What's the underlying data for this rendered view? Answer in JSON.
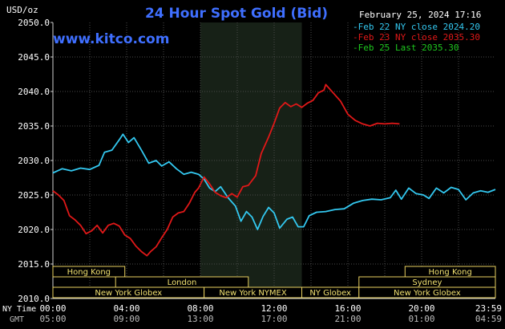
{
  "chart_data": {
    "type": "line",
    "title": "24 Hour Spot Gold (Bid)",
    "watermark": "www.kitco.com",
    "y_unit": "USD/oz",
    "timestamp": "February 25, 2024 17:16",
    "ylim": [
      2010,
      2050
    ],
    "y_ticks": [
      "2050.0",
      "2045.0",
      "2040.0",
      "2035.0",
      "2030.0",
      "2025.0",
      "2020.0",
      "2015.0",
      "2010.0"
    ],
    "xlim_hours": [
      0,
      24
    ],
    "x_row_label_ny": "NY Time",
    "x_row_label_gmt": "GMT",
    "x_ticks_ny": [
      "00:00",
      "04:00",
      "08:00",
      "12:00",
      "16:00",
      "20:00",
      "23:59"
    ],
    "x_ticks_gmt": [
      "05:00",
      "09:00",
      "13:00",
      "17:00",
      "21:00",
      "01:00",
      "04:59"
    ],
    "legend": [
      {
        "text": "Feb 22 NY close 2024.20",
        "color": "#33c8f0"
      },
      {
        "text": "Feb 23 NY close 2035.30",
        "color": "#e01818"
      },
      {
        "text": "Feb 25 Last 2035.30",
        "color": "#1ec81e"
      }
    ],
    "highlight_band_hours": [
      8,
      13.5
    ],
    "sessions": [
      {
        "label": "Hong Kong",
        "start": 0,
        "end": 3.9
      },
      {
        "label": "Hong Kong",
        "start": 19.1,
        "end": 24
      },
      {
        "label": "London",
        "start": 3.4,
        "end": 10.6
      },
      {
        "label": "Sydney",
        "start": 16.6,
        "end": 24
      },
      {
        "label": "New York Globex",
        "start": 0,
        "end": 8.2
      },
      {
        "label": "New York NYMEX",
        "start": 8.2,
        "end": 13.5
      },
      {
        "label": "NY Globex",
        "start": 13.5,
        "end": 16.6
      },
      {
        "label": "New York Globex",
        "start": 16.6,
        "end": 24
      }
    ],
    "series": [
      {
        "name": "Feb 22 NY close 2024.20",
        "color": "#33c8f0",
        "points": [
          [
            0,
            2028.2
          ],
          [
            0.5,
            2028.8
          ],
          [
            1,
            2028.5
          ],
          [
            1.5,
            2028.9
          ],
          [
            2,
            2028.7
          ],
          [
            2.5,
            2029.3
          ],
          [
            2.8,
            2031.2
          ],
          [
            3.2,
            2031.5
          ],
          [
            3.6,
            2033.0
          ],
          [
            3.8,
            2033.8
          ],
          [
            4.1,
            2032.6
          ],
          [
            4.4,
            2033.3
          ],
          [
            4.8,
            2031.5
          ],
          [
            5.2,
            2029.6
          ],
          [
            5.6,
            2030.0
          ],
          [
            5.9,
            2029.2
          ],
          [
            6.3,
            2029.8
          ],
          [
            6.7,
            2028.8
          ],
          [
            7.1,
            2028.0
          ],
          [
            7.5,
            2028.3
          ],
          [
            7.9,
            2028.0
          ],
          [
            8.2,
            2027.3
          ],
          [
            8.5,
            2026.0
          ],
          [
            8.8,
            2025.5
          ],
          [
            9.1,
            2026.2
          ],
          [
            9.5,
            2024.6
          ],
          [
            9.9,
            2023.4
          ],
          [
            10.2,
            2021.2
          ],
          [
            10.5,
            2022.6
          ],
          [
            10.8,
            2021.8
          ],
          [
            11.1,
            2020.0
          ],
          [
            11.4,
            2021.9
          ],
          [
            11.7,
            2023.2
          ],
          [
            12.0,
            2022.4
          ],
          [
            12.3,
            2020.2
          ],
          [
            12.7,
            2021.5
          ],
          [
            13.0,
            2021.8
          ],
          [
            13.3,
            2020.4
          ],
          [
            13.6,
            2020.4
          ],
          [
            13.9,
            2022.0
          ],
          [
            14.3,
            2022.5
          ],
          [
            14.8,
            2022.6
          ],
          [
            15.3,
            2022.9
          ],
          [
            15.8,
            2023.0
          ],
          [
            16.3,
            2023.8
          ],
          [
            16.8,
            2024.2
          ],
          [
            17.3,
            2024.4
          ],
          [
            17.8,
            2024.3
          ],
          [
            18.3,
            2024.6
          ],
          [
            18.6,
            2025.7
          ],
          [
            18.9,
            2024.4
          ],
          [
            19.3,
            2026.0
          ],
          [
            19.7,
            2025.2
          ],
          [
            20.1,
            2025.0
          ],
          [
            20.4,
            2024.5
          ],
          [
            20.8,
            2026.0
          ],
          [
            21.2,
            2025.3
          ],
          [
            21.6,
            2026.1
          ],
          [
            22.0,
            2025.8
          ],
          [
            22.4,
            2024.3
          ],
          [
            22.8,
            2025.3
          ],
          [
            23.2,
            2025.6
          ],
          [
            23.6,
            2025.4
          ],
          [
            24,
            2025.8
          ]
        ]
      },
      {
        "name": "Feb 23 NY close 2035.30",
        "color": "#e01818",
        "points": [
          [
            0,
            2025.6
          ],
          [
            0.3,
            2025.0
          ],
          [
            0.6,
            2024.2
          ],
          [
            0.9,
            2022.0
          ],
          [
            1.2,
            2021.4
          ],
          [
            1.5,
            2020.6
          ],
          [
            1.8,
            2019.4
          ],
          [
            2.1,
            2019.8
          ],
          [
            2.4,
            2020.6
          ],
          [
            2.7,
            2019.5
          ],
          [
            3.0,
            2020.6
          ],
          [
            3.3,
            2020.9
          ],
          [
            3.6,
            2020.5
          ],
          [
            3.9,
            2019.2
          ],
          [
            4.2,
            2018.7
          ],
          [
            4.5,
            2017.6
          ],
          [
            4.8,
            2016.8
          ],
          [
            5.1,
            2016.2
          ],
          [
            5.3,
            2016.8
          ],
          [
            5.6,
            2017.5
          ],
          [
            5.9,
            2018.8
          ],
          [
            6.2,
            2020.0
          ],
          [
            6.5,
            2021.8
          ],
          [
            6.8,
            2022.4
          ],
          [
            7.1,
            2022.6
          ],
          [
            7.4,
            2023.8
          ],
          [
            7.7,
            2025.4
          ],
          [
            7.9,
            2026.0
          ],
          [
            8.2,
            2027.6
          ],
          [
            8.5,
            2026.6
          ],
          [
            8.8,
            2025.4
          ],
          [
            9.1,
            2024.9
          ],
          [
            9.4,
            2024.6
          ],
          [
            9.7,
            2025.2
          ],
          [
            10.0,
            2024.7
          ],
          [
            10.3,
            2026.2
          ],
          [
            10.6,
            2026.4
          ],
          [
            11.0,
            2027.8
          ],
          [
            11.3,
            2031.0
          ],
          [
            11.7,
            2033.4
          ],
          [
            12.0,
            2035.4
          ],
          [
            12.3,
            2037.6
          ],
          [
            12.6,
            2038.4
          ],
          [
            12.9,
            2037.8
          ],
          [
            13.2,
            2038.2
          ],
          [
            13.5,
            2037.7
          ],
          [
            13.8,
            2038.3
          ],
          [
            14.1,
            2038.7
          ],
          [
            14.4,
            2039.8
          ],
          [
            14.7,
            2040.2
          ],
          [
            14.8,
            2041.0
          ],
          [
            15.2,
            2039.8
          ],
          [
            15.6,
            2038.6
          ],
          [
            16.0,
            2036.7
          ],
          [
            16.4,
            2035.8
          ],
          [
            16.8,
            2035.3
          ],
          [
            17.2,
            2035.0
          ],
          [
            17.6,
            2035.4
          ],
          [
            18.0,
            2035.3
          ],
          [
            18.4,
            2035.4
          ],
          [
            18.8,
            2035.3
          ]
        ]
      }
    ]
  }
}
